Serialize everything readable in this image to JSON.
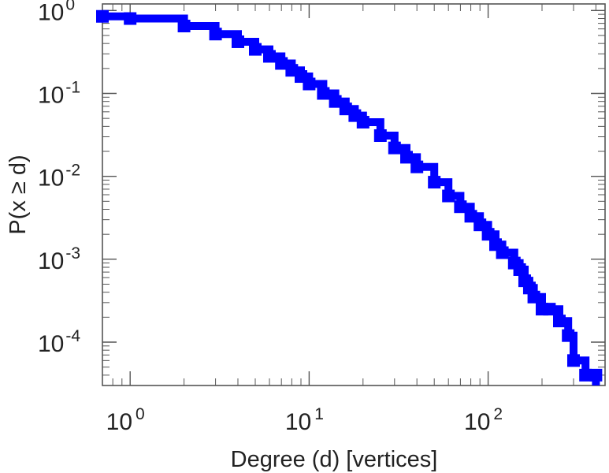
{
  "chart_data": {
    "type": "line",
    "title": "",
    "xlabel": "Degree (d) [vertices]",
    "ylabel": "P(x ≥ d)",
    "x_scale": "log",
    "y_scale": "log",
    "xlim": [
      0.7,
      450
    ],
    "ylim": [
      3e-05,
      1.2
    ],
    "grid": false,
    "x_ticks": [
      {
        "base": "10",
        "exp": "0",
        "value": 1
      },
      {
        "base": "10",
        "exp": "1",
        "value": 10
      },
      {
        "base": "10",
        "exp": "2",
        "value": 100
      }
    ],
    "y_ticks": [
      {
        "base": "10",
        "exp": "0",
        "value": 1
      },
      {
        "base": "10",
        "exp": "-1",
        "value": 0.1
      },
      {
        "base": "10",
        "exp": "-2",
        "value": 0.01
      },
      {
        "base": "10",
        "exp": "-3",
        "value": 0.001
      },
      {
        "base": "10",
        "exp": "-4",
        "value": 0.0001
      }
    ],
    "series": [
      {
        "color": "#0000ff",
        "x": [
          0.7,
          1,
          2,
          3,
          4,
          5,
          6,
          7,
          8,
          9,
          10,
          12,
          14,
          16,
          18,
          20,
          25,
          30,
          35,
          40,
          50,
          60,
          70,
          80,
          90,
          100,
          110,
          120,
          140,
          150,
          160,
          170,
          180,
          200,
          220,
          250,
          280,
          300,
          350,
          400
        ],
        "y": [
          0.85,
          0.8,
          0.65,
          0.52,
          0.42,
          0.34,
          0.28,
          0.23,
          0.19,
          0.16,
          0.13,
          0.1,
          0.08,
          0.065,
          0.054,
          0.045,
          0.031,
          0.022,
          0.017,
          0.013,
          0.0085,
          0.0058,
          0.0043,
          0.0033,
          0.0026,
          0.002,
          0.0015,
          0.0012,
          0.0009,
          0.00075,
          0.00055,
          0.00045,
          0.00035,
          0.00025,
          0.00025,
          0.00018,
          0.00012,
          6e-05,
          4e-05,
          4e-05
        ]
      }
    ]
  }
}
